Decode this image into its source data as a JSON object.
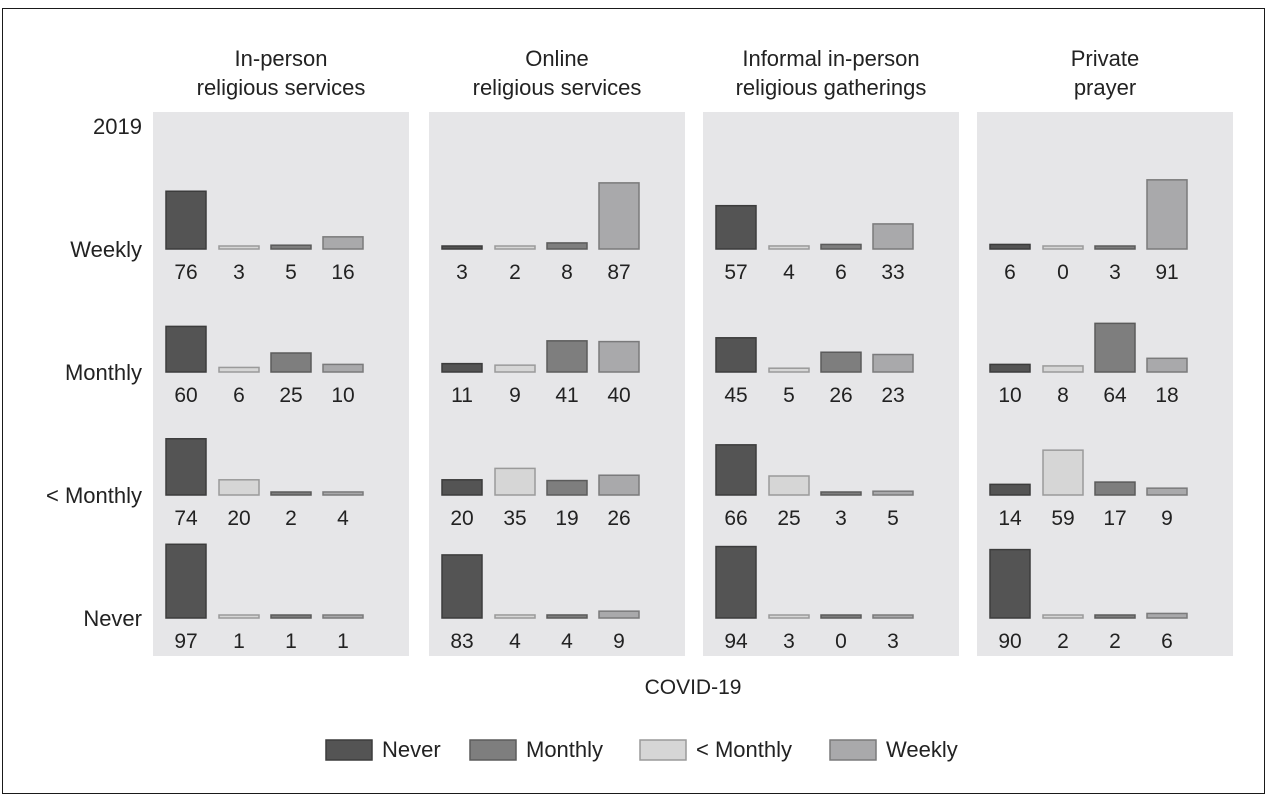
{
  "chart_data": {
    "type": "bar",
    "title": "",
    "row_axis_title": "2019",
    "column_axis_title": "COVID-19",
    "panels": [
      {
        "title_lines": [
          "In-person",
          "religious services"
        ]
      },
      {
        "title_lines": [
          "Online",
          "religious services"
        ]
      },
      {
        "title_lines": [
          "Informal in-person",
          "religious gatherings"
        ]
      },
      {
        "title_lines": [
          "Private",
          "prayer"
        ]
      }
    ],
    "rows": [
      "Weekly",
      "Monthly",
      "< Monthly",
      "Never"
    ],
    "categories": [
      "Never",
      "Monthly",
      "< Monthly",
      "Weekly"
    ],
    "bar_order": [
      "Never",
      "< Monthly",
      "Monthly",
      "Weekly"
    ],
    "series_colors": {
      "Never": "#545454",
      "Monthly": "#7e7e7e",
      "< Monthly": "#d6d6d6",
      "Weekly": "#a9a9ab"
    },
    "values": [
      [
        [
          76,
          3,
          5,
          16
        ],
        [
          3,
          2,
          8,
          87
        ],
        [
          57,
          4,
          6,
          33
        ],
        [
          6,
          0,
          3,
          91
        ]
      ],
      [
        [
          60,
          6,
          25,
          10
        ],
        [
          11,
          9,
          41,
          40
        ],
        [
          45,
          5,
          26,
          23
        ],
        [
          10,
          8,
          64,
          18
        ]
      ],
      [
        [
          74,
          20,
          2,
          4
        ],
        [
          20,
          35,
          19,
          26
        ],
        [
          66,
          25,
          3,
          5
        ],
        [
          14,
          59,
          17,
          9
        ]
      ],
      [
        [
          97,
          1,
          1,
          1
        ],
        [
          83,
          4,
          4,
          9
        ],
        [
          94,
          3,
          0,
          3
        ],
        [
          90,
          2,
          2,
          6
        ]
      ]
    ],
    "legend": [
      "Never",
      "Monthly",
      "< Monthly",
      "Weekly"
    ],
    "legend_position": "bottom",
    "ylim": [
      0,
      100
    ],
    "grid": false
  }
}
